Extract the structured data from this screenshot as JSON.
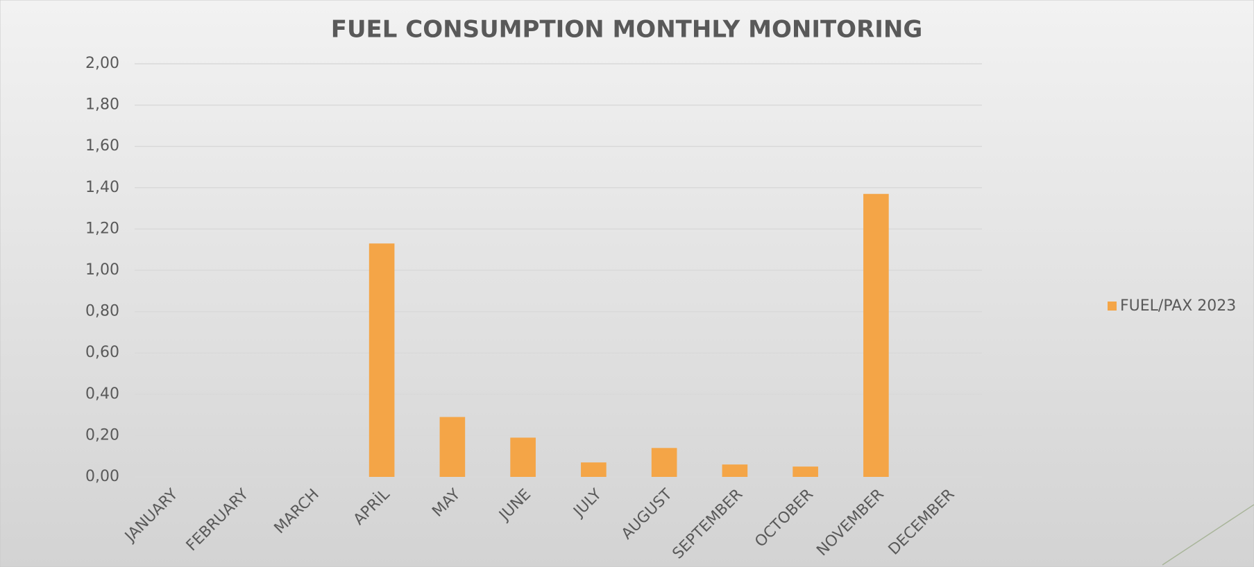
{
  "chart_data": {
    "type": "bar",
    "title": "FUEL CONSUMPTION MONTHLY MONITORING",
    "categories": [
      "JANUARY",
      "FEBRUARY",
      "MARCH",
      "APRİL",
      "MAY",
      "JUNE",
      "JULY",
      "AUGUST",
      "SEPTEMBER",
      "OCTOBER",
      "NOVEMBER",
      "DECEMBER"
    ],
    "series": [
      {
        "name": "FUEL/PAX 2023",
        "color": "#f4a547",
        "values": [
          null,
          null,
          null,
          1.13,
          0.29,
          0.19,
          0.07,
          0.14,
          0.06,
          0.05,
          1.37,
          null
        ]
      }
    ],
    "ylim": [
      0,
      2
    ],
    "yticks": [
      {
        "value": 0,
        "label": "0,00"
      },
      {
        "value": 0.2,
        "label": "0,20"
      },
      {
        "value": 0.4,
        "label": "0,40"
      },
      {
        "value": 0.6,
        "label": "0,60"
      },
      {
        "value": 0.8,
        "label": "0,80"
      },
      {
        "value": 1,
        "label": "1,00"
      },
      {
        "value": 1.2,
        "label": "1,20"
      },
      {
        "value": 1.4,
        "label": "1,40"
      },
      {
        "value": 1.6,
        "label": "1,60"
      },
      {
        "value": 1.8,
        "label": "1,80"
      },
      {
        "value": 2,
        "label": "2,00"
      }
    ],
    "grid": true,
    "legend": "right"
  }
}
